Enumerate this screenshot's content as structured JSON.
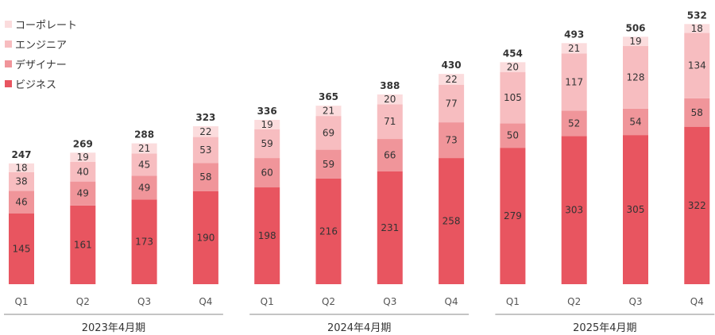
{
  "chart_data": {
    "type": "bar",
    "stacked": true,
    "categories": [
      "Q1",
      "Q2",
      "Q3",
      "Q4",
      "Q1",
      "Q2",
      "Q3",
      "Q4",
      "Q1",
      "Q2",
      "Q3",
      "Q4"
    ],
    "groups": [
      {
        "label": "2023年4月期",
        "categories": [
          0,
          3
        ]
      },
      {
        "label": "2024年4月期",
        "categories": [
          4,
          7
        ]
      },
      {
        "label": "2025年4月期",
        "categories": [
          8,
          11
        ]
      }
    ],
    "series": [
      {
        "name": "ビジネス",
        "color": "#e85560",
        "values": [
          145,
          161,
          173,
          190,
          198,
          216,
          231,
          258,
          279,
          303,
          305,
          322
        ]
      },
      {
        "name": "デザイナー",
        "color": "#f0959a",
        "values": [
          46,
          49,
          49,
          58,
          60,
          59,
          66,
          73,
          50,
          52,
          54,
          58
        ]
      },
      {
        "name": "エンジニア",
        "color": "#f7bdc0",
        "values": [
          38,
          40,
          45,
          53,
          59,
          69,
          71,
          77,
          105,
          117,
          128,
          134
        ]
      },
      {
        "name": "コーポレート",
        "color": "#fbdcdd",
        "values": [
          18,
          19,
          21,
          22,
          19,
          21,
          20,
          22,
          20,
          21,
          19,
          18
        ]
      }
    ],
    "totals": [
      247,
      269,
      288,
      323,
      336,
      365,
      388,
      430,
      454,
      493,
      506,
      532
    ],
    "legend_order": [
      3,
      2,
      1,
      0
    ],
    "legend_position": "top-left",
    "ylim": [
      0,
      540
    ],
    "grid": false
  }
}
